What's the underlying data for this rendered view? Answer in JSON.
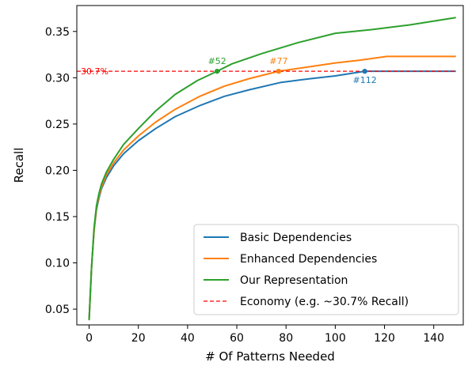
{
  "chart_data": {
    "type": "line",
    "xlabel": "# Of Patterns Needed",
    "ylabel": "Recall",
    "xlim": [
      -5,
      152
    ],
    "ylim": [
      0.033,
      0.378
    ],
    "x_ticks": [
      0,
      20,
      40,
      60,
      80,
      100,
      120,
      140
    ],
    "y_ticks": [
      0.05,
      0.1,
      0.15,
      0.2,
      0.25,
      0.3,
      0.35
    ],
    "y_tick_labels": [
      "0.05",
      "0.10",
      "0.15",
      "0.20",
      "0.25",
      "0.30",
      "0.35"
    ],
    "grid": false,
    "legend_position": "lower-right",
    "series": [
      {
        "name": "Basic Dependencies",
        "color": "#1f77b4",
        "style": "solid",
        "x": [
          0,
          1,
          2,
          3,
          4,
          5,
          7,
          10,
          14,
          20,
          27,
          35,
          45,
          55,
          65,
          78,
          90,
          100,
          112,
          120,
          149
        ],
        "y": [
          0.038,
          0.095,
          0.135,
          0.158,
          0.17,
          0.18,
          0.192,
          0.205,
          0.218,
          0.232,
          0.245,
          0.258,
          0.27,
          0.28,
          0.287,
          0.295,
          0.299,
          0.302,
          0.307,
          0.307,
          0.307
        ]
      },
      {
        "name": "Enhanced Dependencies",
        "color": "#ff7f0e",
        "style": "solid",
        "x": [
          0,
          1,
          2,
          3,
          4,
          5,
          7,
          10,
          14,
          20,
          27,
          35,
          45,
          55,
          65,
          77,
          90,
          100,
          110,
          121,
          149
        ],
        "y": [
          0.038,
          0.095,
          0.135,
          0.16,
          0.172,
          0.182,
          0.195,
          0.208,
          0.222,
          0.237,
          0.252,
          0.266,
          0.28,
          0.291,
          0.299,
          0.307,
          0.312,
          0.316,
          0.319,
          0.323,
          0.323
        ]
      },
      {
        "name": "Our Representation",
        "color": "#2ca02c",
        "style": "solid",
        "x": [
          0,
          1,
          2,
          3,
          4,
          5,
          7,
          10,
          14,
          20,
          27,
          35,
          44,
          52,
          58,
          70,
          85,
          100,
          115,
          130,
          149
        ],
        "y": [
          0.038,
          0.095,
          0.138,
          0.162,
          0.175,
          0.185,
          0.198,
          0.212,
          0.228,
          0.245,
          0.264,
          0.282,
          0.297,
          0.307,
          0.315,
          0.326,
          0.338,
          0.348,
          0.352,
          0.357,
          0.365
        ]
      },
      {
        "name": "Economy (e.g. ~30.7% Recall)",
        "color": "#ff0000",
        "style": "dashed",
        "x": [
          -5,
          149
        ],
        "y": [
          0.307,
          0.307
        ]
      }
    ],
    "markers": [
      {
        "series": "Basic Dependencies",
        "x": 112,
        "y": 0.307,
        "label": "#112",
        "color": "#1f77b4",
        "label_pos": "below"
      },
      {
        "series": "Enhanced Dependencies",
        "x": 77,
        "y": 0.307,
        "label": "#77",
        "color": "#ff7f0e",
        "label_pos": "above"
      },
      {
        "series": "Our Representation",
        "x": 52,
        "y": 0.307,
        "label": "#52",
        "color": "#2ca02c",
        "label_pos": "above"
      }
    ],
    "annotations": [
      {
        "text": "30.7%",
        "color": "#ff0000"
      }
    ]
  }
}
